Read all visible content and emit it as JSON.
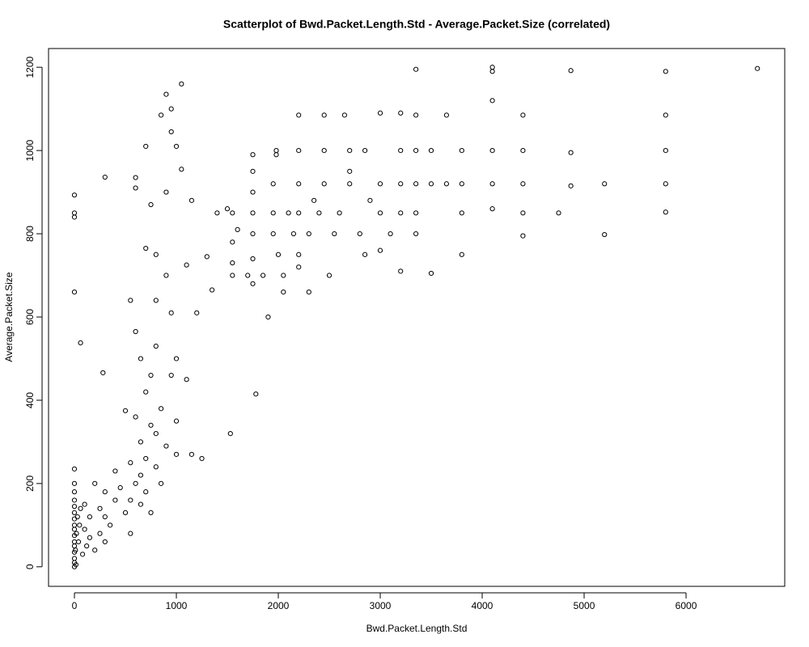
{
  "chart_data": {
    "type": "scatter",
    "title": "Scatterplot of Bwd.Packet.Length.Std - Average.Packet.Size (correlated)",
    "x_label": "Bwd.Packet.Length.Std",
    "y_label": "Average.Packet.Size",
    "color": "#000000",
    "xlim": [
      -254,
      6968
    ],
    "ylim": [
      -47,
      1245
    ],
    "xticks": [
      0,
      1000,
      2000,
      3000,
      4000,
      5000,
      6000
    ],
    "yticks": [
      0,
      200,
      400,
      600,
      800,
      1000,
      1200
    ],
    "x": [
      0,
      0,
      0,
      0,
      0,
      0,
      0,
      0,
      0,
      0,
      0,
      0,
      0,
      0,
      0,
      0,
      0,
      0,
      0,
      0,
      10,
      15,
      20,
      30,
      40,
      50,
      60,
      60,
      80,
      100,
      100,
      120,
      150,
      150,
      200,
      200,
      250,
      250,
      280,
      300,
      300,
      300,
      300,
      350,
      400,
      400,
      450,
      500,
      500,
      550,
      550,
      550,
      550,
      600,
      600,
      600,
      600,
      600,
      650,
      650,
      650,
      650,
      700,
      700,
      700,
      700,
      700,
      750,
      750,
      750,
      750,
      800,
      800,
      800,
      800,
      800,
      850,
      850,
      850,
      900,
      900,
      900,
      900,
      950,
      950,
      950,
      950,
      1000,
      1000,
      1000,
      1000,
      1050,
      1050,
      1100,
      1100,
      1150,
      1150,
      1200,
      1250,
      1300,
      1350,
      1400,
      1500,
      1530,
      1550,
      1550,
      1550,
      1550,
      1600,
      1700,
      1750,
      1750,
      1750,
      1750,
      1750,
      1750,
      1750,
      1780,
      1850,
      1900,
      1950,
      1950,
      1950,
      1980,
      1980,
      2000,
      2050,
      2050,
      2100,
      2150,
      2200,
      2200,
      2200,
      2200,
      2200,
      2200,
      2300,
      2300,
      2350,
      2400,
      2450,
      2450,
      2450,
      2500,
      2550,
      2600,
      2650,
      2700,
      2700,
      2700,
      2800,
      2850,
      2850,
      2900,
      3000,
      3000,
      3000,
      3000,
      3100,
      3200,
      3200,
      3200,
      3200,
      3200,
      3350,
      3350,
      3350,
      3350,
      3350,
      3350,
      3500,
      3500,
      3500,
      3650,
      3650,
      3800,
      3800,
      3800,
      3800,
      4100,
      4100,
      4100,
      4100,
      4100,
      4100,
      4400,
      4400,
      4400,
      4400,
      4400,
      4750,
      4870,
      4870,
      4870,
      5200,
      5200,
      5800,
      5800,
      5800,
      5800,
      5800,
      6700
    ],
    "values": [
      0,
      10,
      20,
      35,
      50,
      60,
      75,
      90,
      100,
      115,
      130,
      145,
      160,
      180,
      200,
      235,
      660,
      840,
      850,
      893,
      40,
      5,
      80,
      120,
      60,
      100,
      140,
      538,
      30,
      150,
      90,
      50,
      70,
      120,
      40,
      200,
      80,
      140,
      466,
      60,
      120,
      180,
      936,
      100,
      160,
      230,
      190,
      130,
      375,
      160,
      80,
      640,
      250,
      200,
      360,
      565,
      910,
      935,
      150,
      300,
      500,
      220,
      260,
      180,
      420,
      1010,
      765,
      340,
      460,
      870,
      130,
      320,
      240,
      530,
      640,
      750,
      380,
      1085,
      200,
      1135,
      900,
      290,
      700,
      1100,
      1045,
      460,
      610,
      1010,
      500,
      350,
      270,
      1160,
      955,
      725,
      450,
      880,
      270,
      610,
      260,
      745,
      665,
      850,
      860,
      320,
      730,
      700,
      780,
      850,
      810,
      700,
      740,
      800,
      850,
      900,
      950,
      990,
      680,
      415,
      700,
      600,
      800,
      850,
      920,
      1000,
      990,
      750,
      660,
      700,
      850,
      800,
      1000,
      1085,
      920,
      850,
      750,
      720,
      660,
      800,
      880,
      850,
      1000,
      920,
      1085,
      700,
      800,
      850,
      1085,
      950,
      1000,
      920,
      800,
      1000,
      750,
      880,
      920,
      850,
      1090,
      760,
      800,
      1000,
      920,
      850,
      1090,
      710,
      1195,
      1000,
      920,
      850,
      800,
      1085,
      920,
      705,
      1000,
      1085,
      920,
      1000,
      920,
      850,
      750,
      1200,
      1190,
      1120,
      1000,
      920,
      860,
      1085,
      1000,
      920,
      850,
      795,
      850,
      1192,
      995,
      915,
      920,
      798,
      1190,
      1085,
      1000,
      920,
      852,
      1197
    ]
  }
}
